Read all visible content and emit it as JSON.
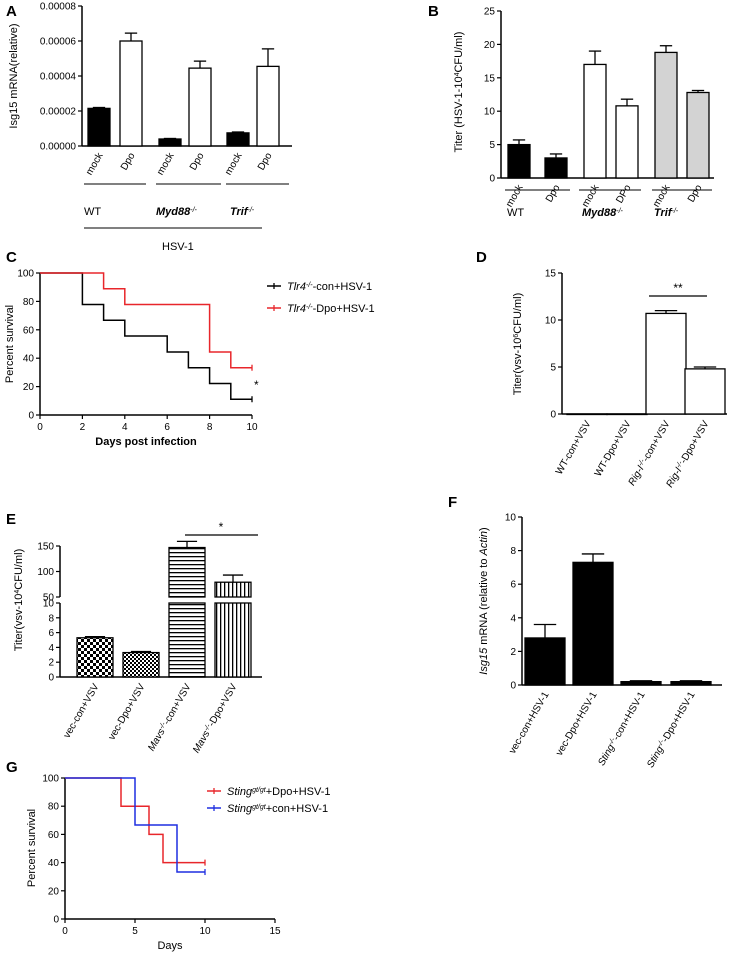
{
  "chart_data": [
    {
      "panel": "A",
      "type": "bar",
      "ylabel": "Isg15 mRNA(relative)",
      "ylim": [
        0,
        8e-05
      ],
      "yticks": [
        "0.00000",
        "0.00002",
        "0.00004",
        "0.00006",
        "0.00008"
      ],
      "categories": [
        "mock",
        "Dpo",
        "mock",
        "Dpo",
        "mock",
        "Dpo"
      ],
      "values": [
        2.15e-05,
        6e-05,
        4e-06,
        4.45e-05,
        7.5e-06,
        4.55e-05
      ],
      "errors": [
        5e-07,
        4.5e-06,
        3e-07,
        4e-06,
        5e-07,
        1e-05
      ],
      "fills": [
        "#000000",
        "#ffffff",
        "#000000",
        "#ffffff",
        "#000000",
        "#ffffff"
      ],
      "groups": [
        {
          "label": "WT",
          "italic": false
        },
        {
          "label": "Myd88",
          "sup": "-/-",
          "italic": true
        },
        {
          "label": "Trif",
          "sup": "-/-",
          "italic": true
        }
      ],
      "footer": "HSV-1"
    },
    {
      "panel": "B",
      "type": "bar",
      "ylabel": "Titer  (HSV-1-10",
      "ylabel_sup": "4",
      "ylabel_tail": "CFU/ml)",
      "ylim": [
        0,
        25
      ],
      "yticks": [
        "0",
        "5",
        "10",
        "15",
        "20",
        "25"
      ],
      "categories": [
        "mock",
        "Dpo",
        "mock",
        "DPo",
        "mock",
        "Dpo"
      ],
      "values": [
        5.0,
        3.0,
        17.0,
        10.8,
        18.8,
        12.8
      ],
      "errors": [
        0.7,
        0.6,
        2.0,
        1.0,
        1.0,
        0.3
      ],
      "fills": [
        "#000000",
        "#000000",
        "#ffffff",
        "#ffffff",
        "#d3d3d3",
        "#d3d3d3"
      ],
      "groups": [
        {
          "label": "WT",
          "italic": false
        },
        {
          "label": "Myd88",
          "sup": "-/-",
          "italic": true
        },
        {
          "label": "Trif",
          "sup": "-/-",
          "italic": true
        }
      ]
    },
    {
      "panel": "C",
      "type": "line",
      "xlabel": "Days post infection",
      "ylabel": "Percent survival",
      "xlim": [
        0,
        10
      ],
      "ylim": [
        0,
        100
      ],
      "xticks": [
        "0",
        "2",
        "4",
        "6",
        "8",
        "10"
      ],
      "yticks": [
        "0",
        "20",
        "40",
        "60",
        "80",
        "100"
      ],
      "series": [
        {
          "name": "Tlr4",
          "sup": "-/-",
          "suffix": "-con+HSV-1",
          "color": "#000000",
          "x": [
            0,
            2,
            3,
            4,
            6,
            7,
            8,
            9,
            10
          ],
          "y": [
            100,
            77.8,
            66.7,
            55.6,
            44.4,
            33.3,
            22.2,
            11.1,
            11.1
          ]
        },
        {
          "name": "Tlr4",
          "sup": "-/-",
          "suffix": "-Dpo+HSV-1",
          "color": "#e8262b",
          "x": [
            0,
            3,
            4,
            8,
            9,
            10
          ],
          "y": [
            100,
            88.9,
            77.8,
            44.4,
            33.3,
            33.3
          ]
        }
      ],
      "annotation": "*"
    },
    {
      "panel": "D",
      "type": "bar",
      "ylabel": "Titer(vsv-10",
      "ylabel_sup": "6",
      "ylabel_tail": "CFU/ml)",
      "ylim": [
        0,
        15
      ],
      "yticks": [
        "0",
        "5",
        "10",
        "15"
      ],
      "categories": [
        {
          "pre": "WT-con+VSV",
          "sup": "",
          "post": "",
          "italic": false
        },
        {
          "pre": "WT-Dpo+VSV",
          "sup": "",
          "post": "",
          "italic": false
        },
        {
          "pre": "Rig-I",
          "sup": "-/-",
          "post": "-con+VSV",
          "italic": true
        },
        {
          "pre": "Rig-I",
          "sup": "-/-",
          "post": "-Dpo+VSV",
          "italic": true
        }
      ],
      "values": [
        0,
        0,
        10.7,
        4.8
      ],
      "errors": [
        0,
        0,
        0.3,
        0.2
      ],
      "annotation": "**"
    },
    {
      "panel": "E",
      "type": "bar",
      "ylabel": "Titer(vsv-10",
      "ylabel_sup": "4",
      "ylabel_tail": "CFU/ml)",
      "ylim": [
        0,
        150
      ],
      "axis_break": [
        10,
        50
      ],
      "yticks": [
        "0",
        "2",
        "4",
        "6",
        "8",
        "10",
        "50",
        "100",
        "150"
      ],
      "categories": [
        {
          "pre": "vec-con+VSV",
          "sup": "",
          "post": "",
          "italic": false
        },
        {
          "pre": "vec-Dpo+VSV",
          "sup": "",
          "post": "",
          "italic": false
        },
        {
          "pre": "Mavs",
          "sup": "-/-",
          "post": "-con+VSV",
          "italic": true
        },
        {
          "pre": "Mavs",
          "sup": "-/-",
          "post": "-Dpo+VSV",
          "italic": true
        }
      ],
      "values": [
        5.3,
        3.3,
        147,
        79
      ],
      "errors": [
        0.15,
        0.15,
        12,
        14
      ],
      "patterns": [
        "checker",
        "checker-small",
        "hstripe",
        "vstripe"
      ],
      "annotation": "*"
    },
    {
      "panel": "F",
      "type": "bar",
      "ylabel": "Isg15",
      "ylabel_mid": " mRNA (relative to ",
      "ylabel_tail": "Actin",
      "ylabel_end": ")",
      "ylim": [
        0,
        10
      ],
      "yticks": [
        "0",
        "2",
        "4",
        "6",
        "8",
        "10"
      ],
      "categories": [
        {
          "pre": "vec-con+HSV-1",
          "sup": "",
          "post": "",
          "italic": false
        },
        {
          "pre": "vec-Dpo+HSV-1",
          "sup": "",
          "post": "",
          "italic": false
        },
        {
          "pre": "Sting",
          "sup": "-/-",
          "post": "-con+HSV-1",
          "italic": true
        },
        {
          "pre": "Sting",
          "sup": "-/-",
          "post": "-Dpo+HSV-1",
          "italic": true
        }
      ],
      "values": [
        2.8,
        7.3,
        0.2,
        0.2
      ],
      "errors": [
        0.8,
        0.5,
        0.05,
        0.05
      ]
    },
    {
      "panel": "G",
      "type": "line",
      "xlabel": "Days",
      "ylabel": "Percent survival",
      "xlim": [
        0,
        15
      ],
      "ylim": [
        0,
        100
      ],
      "xticks": [
        "0",
        "5",
        "10",
        "15"
      ],
      "yticks": [
        "0",
        "20",
        "40",
        "60",
        "80",
        "100"
      ],
      "series": [
        {
          "name": "Sting",
          "sup": "gt/gt",
          "suffix": "+Dpo+HSV-1",
          "color": "#e8262b",
          "x": [
            0,
            4,
            6,
            7,
            10
          ],
          "y": [
            100,
            80,
            60,
            40,
            40
          ]
        },
        {
          "name": "Sting",
          "sup": "gt/gt",
          "suffix": "+con+HSV-1",
          "color": "#1f2fe0",
          "x": [
            0,
            5,
            8,
            10
          ],
          "y": [
            100,
            66.7,
            33.3,
            33.3
          ]
        }
      ]
    }
  ]
}
